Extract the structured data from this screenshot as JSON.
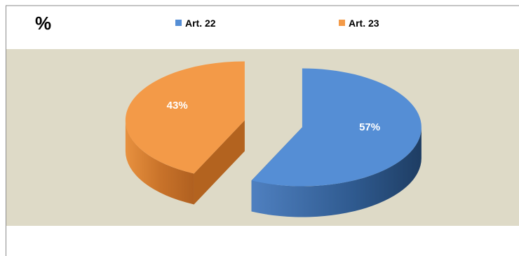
{
  "chart_data": {
    "type": "pie",
    "title": "%",
    "slices": [
      {
        "name": "Art. 22",
        "value": 57,
        "label": "57%",
        "color": "#558ED5"
      },
      {
        "name": "Art. 23",
        "value": 43,
        "label": "43%",
        "color": "#F39A48"
      }
    ],
    "legend_position": "top",
    "style": "3d-exploded",
    "background_color": "#DEDAC7"
  }
}
